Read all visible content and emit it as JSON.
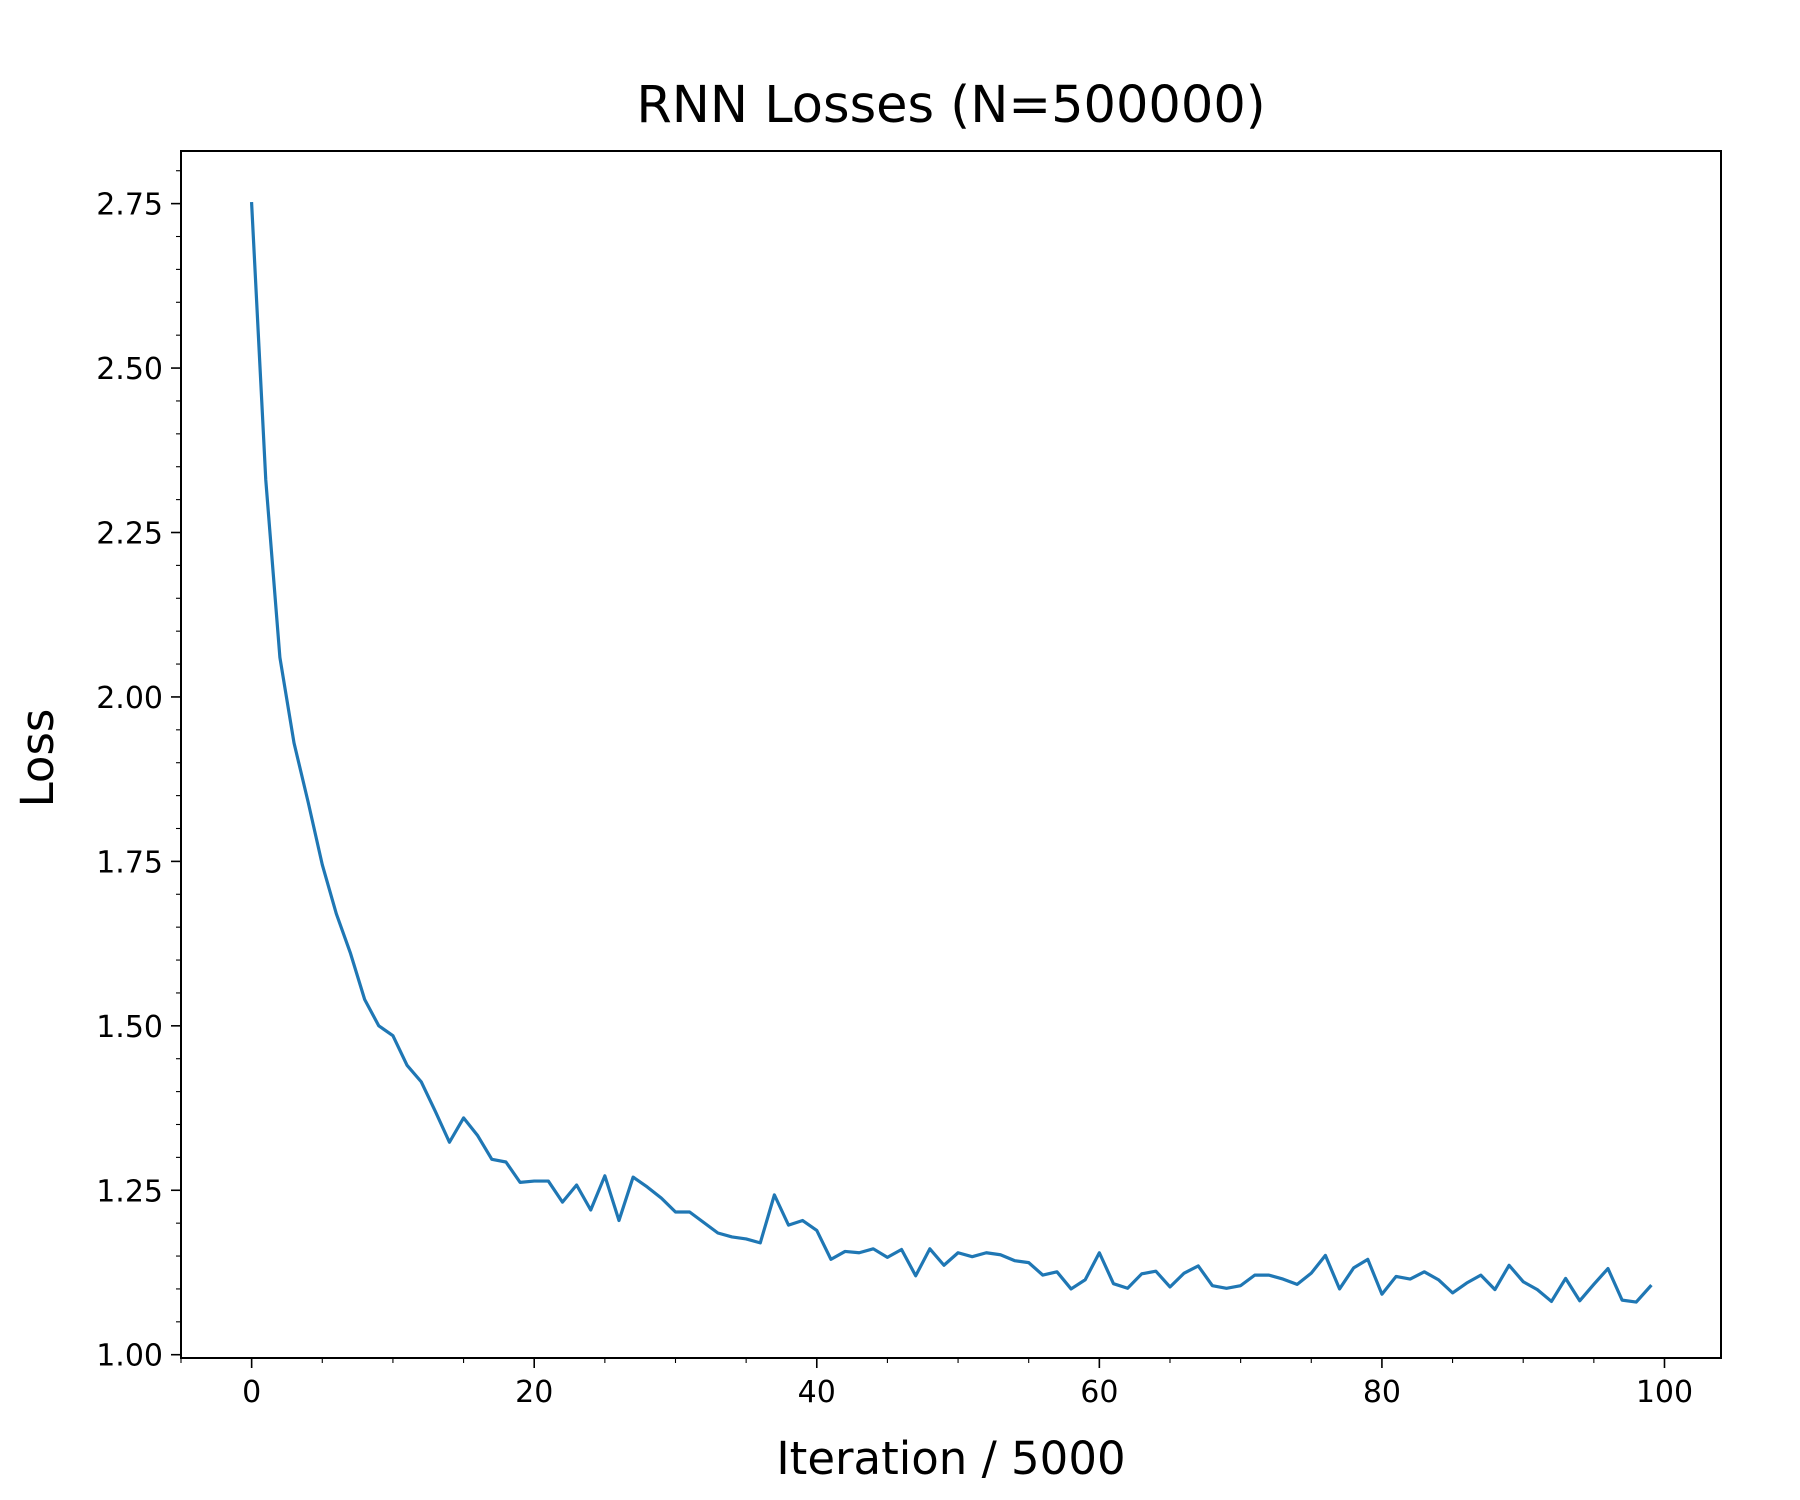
{
  "chart_data": {
    "type": "line",
    "title": "RNN Losses (N=500000)",
    "xlabel": "Iteration / 5000",
    "ylabel": "Loss",
    "xlim": [
      -5,
      104
    ],
    "ylim": [
      0.995,
      2.83
    ],
    "x_ticks": [
      0,
      20,
      40,
      60,
      80,
      100
    ],
    "x_tick_labels": [
      "0",
      "20",
      "40",
      "60",
      "80",
      "100"
    ],
    "x_minor_step": 5,
    "y_ticks": [
      1.0,
      1.25,
      1.5,
      1.75,
      2.0,
      2.25,
      2.5,
      2.75
    ],
    "y_tick_labels": [
      "1.00",
      "1.25",
      "1.50",
      "1.75",
      "2.00",
      "2.25",
      "2.50",
      "2.75"
    ],
    "y_minor_step": 0.05,
    "grid": false,
    "legend": "none",
    "series": [
      {
        "color": "#1f77b4",
        "x": [
          0,
          1,
          2,
          3,
          4,
          5,
          6,
          7,
          8,
          9,
          10,
          11,
          12,
          13,
          14,
          15,
          16,
          17,
          18,
          19,
          20,
          21,
          22,
          23,
          24,
          25,
          26,
          27,
          28,
          29,
          30,
          31,
          32,
          33,
          34,
          35,
          36,
          37,
          38,
          39,
          40,
          41,
          42,
          43,
          44,
          45,
          46,
          47,
          48,
          49,
          50,
          51,
          52,
          53,
          54,
          55,
          56,
          57,
          58,
          59,
          60,
          61,
          62,
          63,
          64,
          65,
          66,
          67,
          68,
          69,
          70,
          71,
          72,
          73,
          74,
          75,
          76,
          77,
          78,
          79,
          80,
          81,
          82,
          83,
          84,
          85,
          86,
          87,
          88,
          89,
          90,
          91,
          92,
          93,
          94,
          95,
          96,
          97,
          98,
          99
        ],
        "values": [
          2.75,
          2.33,
          2.06,
          1.93,
          1.84,
          1.745,
          1.67,
          1.61,
          1.54,
          1.5,
          1.485,
          1.44,
          1.415,
          1.37,
          1.323,
          1.36,
          1.333,
          1.297,
          1.293,
          1.262,
          1.264,
          1.264,
          1.232,
          1.258,
          1.22,
          1.272,
          1.204,
          1.27,
          1.255,
          1.238,
          1.217,
          1.217,
          1.201,
          1.185,
          1.179,
          1.176,
          1.17,
          1.243,
          1.197,
          1.204,
          1.189,
          1.145,
          1.157,
          1.155,
          1.161,
          1.148,
          1.16,
          1.12,
          1.161,
          1.136,
          1.155,
          1.149,
          1.155,
          1.152,
          1.143,
          1.14,
          1.121,
          1.126,
          1.1,
          1.114,
          1.155,
          1.108,
          1.101,
          1.123,
          1.127,
          1.103,
          1.124,
          1.135,
          1.105,
          1.101,
          1.105,
          1.121,
          1.121,
          1.115,
          1.107,
          1.124,
          1.151,
          1.1,
          1.132,
          1.145,
          1.092,
          1.119,
          1.115,
          1.126,
          1.114,
          1.094,
          1.109,
          1.121,
          1.099,
          1.136,
          1.111,
          1.099,
          1.081,
          1.116,
          1.082,
          1.107,
          1.131,
          1.083,
          1.08,
          1.104
        ]
      }
    ]
  }
}
